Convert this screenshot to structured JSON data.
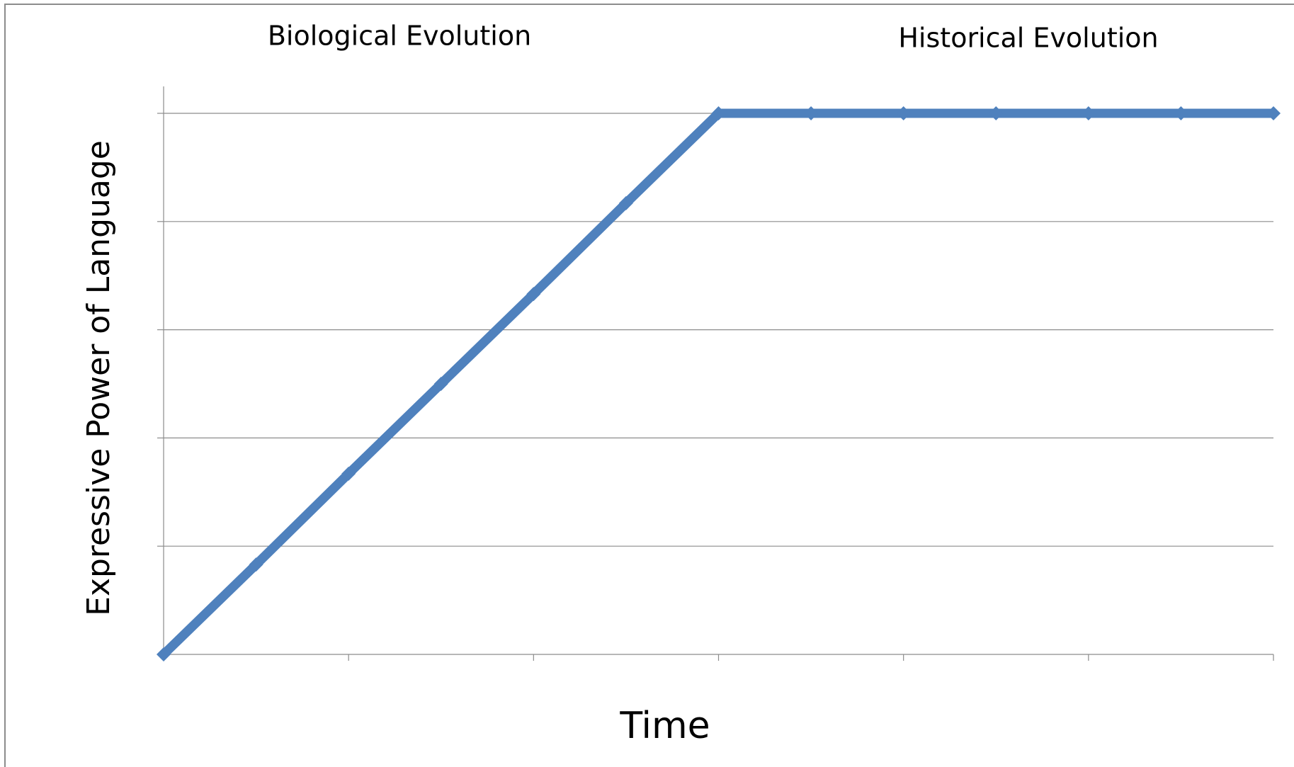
{
  "chart_data": {
    "type": "line",
    "annotations": [
      "Biological Evolution",
      "Historical Evolution"
    ],
    "x_label": "Time",
    "y_label": "Expressive Power of Language",
    "x": [
      0,
      1,
      2,
      3,
      4,
      5,
      6,
      7,
      8,
      9,
      10,
      11,
      12
    ],
    "series": [
      {
        "color": "#4f81bd",
        "values": [
          0,
          0.83,
          1.67,
          2.5,
          3.33,
          4.17,
          5,
          5,
          5,
          5,
          5,
          5,
          5
        ]
      }
    ],
    "xlim": [
      0,
      12
    ],
    "xticks": [
      0,
      2,
      4,
      6,
      8,
      10,
      12
    ],
    "ylim": [
      0,
      5
    ],
    "yticks": [
      0,
      1,
      2,
      3,
      4,
      5
    ],
    "grid": true
  }
}
